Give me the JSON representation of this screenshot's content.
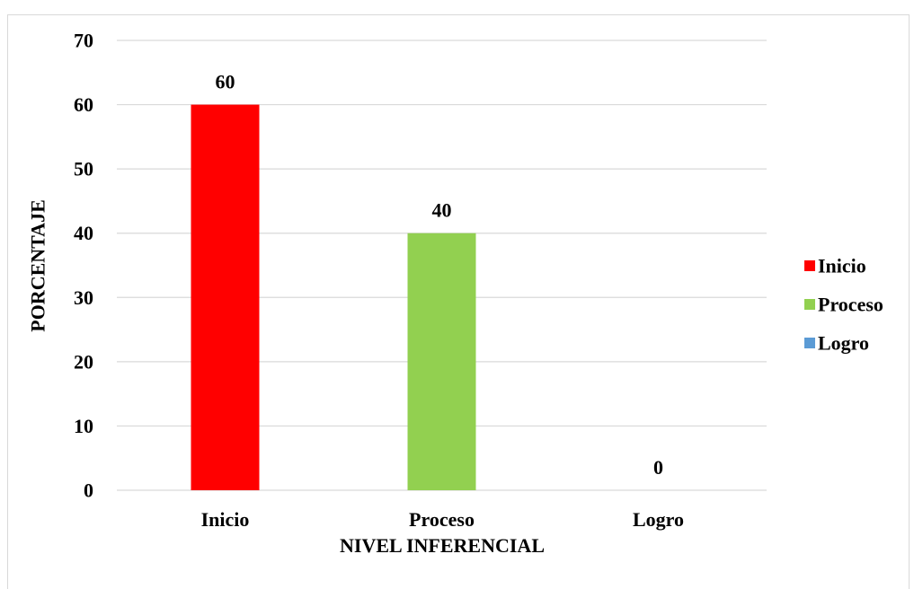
{
  "chart_data": {
    "type": "bar",
    "categories": [
      "Inicio",
      "Proceso",
      "Logro"
    ],
    "values": [
      60,
      40,
      0
    ],
    "data_labels": [
      "60",
      "40",
      "0"
    ],
    "colors": [
      "#ff0000",
      "#92d050",
      "#5b9bd5"
    ],
    "xlabel": "NIVEL INFERENCIAL",
    "ylabel": "PORCENTAJE",
    "ylim": [
      0,
      70
    ],
    "yticks": [
      0,
      10,
      20,
      30,
      40,
      50,
      60,
      70
    ],
    "ytick_labels": [
      "0",
      "10",
      "20",
      "30",
      "40",
      "50",
      "60",
      "70"
    ],
    "grid": true,
    "gridline_color": "#d9d9d9",
    "legend": {
      "position": "right",
      "entries": [
        "Inicio",
        "Proceso",
        "Logro"
      ]
    }
  }
}
